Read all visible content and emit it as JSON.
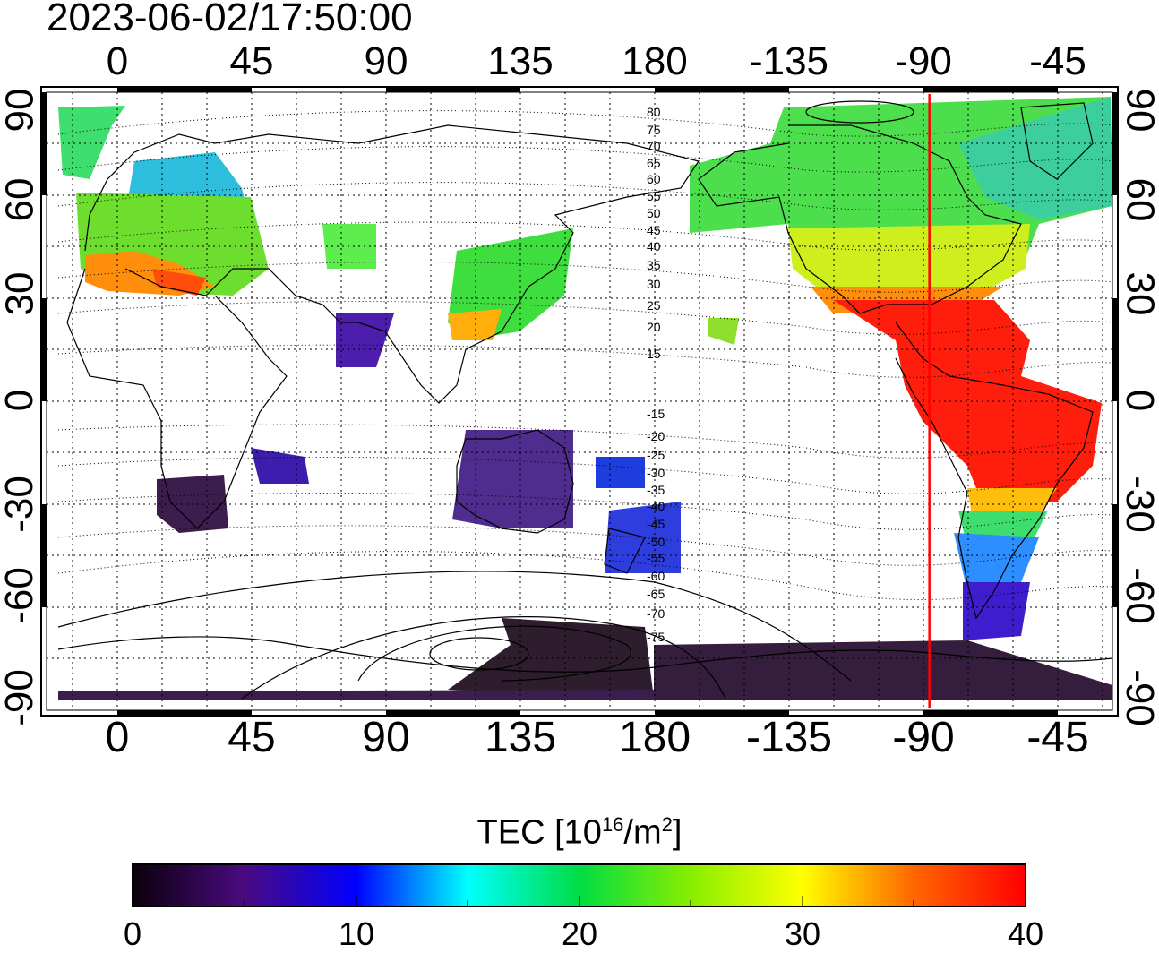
{
  "timestamp": "2023-06-02/17:50:00",
  "longitude_ticks": [
    "0",
    "45",
    "90",
    "135",
    "180",
    "-135",
    "-90",
    "-45"
  ],
  "latitude_ticks": [
    "90",
    "60",
    "30",
    "0",
    "-30",
    "-60",
    "-90"
  ],
  "contour_labels": [
    "80",
    "75",
    "70",
    "65",
    "60",
    "55",
    "50",
    "45",
    "40",
    "35",
    "30",
    "25",
    "20",
    "15",
    "-15",
    "-20",
    "-25",
    "-30",
    "-35",
    "-40",
    "-45",
    "-50",
    "-55",
    "-60",
    "-65",
    "-70",
    "-75"
  ],
  "marker_longitude": -88,
  "colorbar": {
    "title_main": "TEC  [10",
    "title_exp": "16",
    "title_unit": "/m",
    "title_exp2": "2",
    "title_end": "]",
    "ticks": [
      "0",
      "10",
      "20",
      "30",
      "40"
    ],
    "min": 0,
    "max": 40
  },
  "colors": {
    "marker_line": "#ff0000"
  }
}
